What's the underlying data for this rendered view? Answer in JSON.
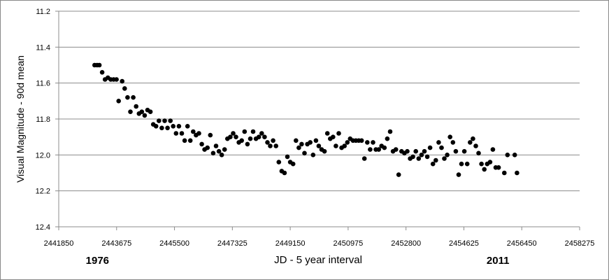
{
  "chart_data": {
    "type": "scatter",
    "title": "",
    "xlabel": "JD - 5 year interval",
    "ylabel": "Visual Magnitude - 90d mean",
    "xlim": [
      2441850,
      2458275
    ],
    "ylim": [
      11.2,
      12.4
    ],
    "y_inverted": true,
    "grid": "horizontal",
    "marker_color": "#000000",
    "xticks": [
      2441850,
      2443675,
      2445500,
      2447325,
      2449150,
      2450975,
      2452800,
      2454625,
      2456450,
      2458275
    ],
    "yticks": [
      11.2,
      11.4,
      11.6,
      11.8,
      12.0,
      12.2,
      12.4
    ],
    "xtick_labels": [
      "2441850",
      "2443675",
      "2445500",
      "2447325",
      "2449150",
      "2450975",
      "2452800",
      "2454625",
      "2456450",
      "2458275"
    ],
    "ytick_labels": [
      "11.2",
      "11.4",
      "11.6",
      "11.8",
      "12.0",
      "12.2",
      "12.4"
    ],
    "annotations": [
      {
        "text": "1976",
        "x": 2443070
      },
      {
        "text": "2011",
        "x": 2455700
      }
    ],
    "series": [
      {
        "points": [
          [
            2442980,
            11.5
          ],
          [
            2443060,
            11.5
          ],
          [
            2443130,
            11.5
          ],
          [
            2443220,
            11.54
          ],
          [
            2443310,
            11.58
          ],
          [
            2443400,
            11.57
          ],
          [
            2443490,
            11.58
          ],
          [
            2443580,
            11.58
          ],
          [
            2443670,
            11.58
          ],
          [
            2443740,
            11.7
          ],
          [
            2443850,
            11.59
          ],
          [
            2443930,
            11.63
          ],
          [
            2444020,
            11.68
          ],
          [
            2444110,
            11.76
          ],
          [
            2444200,
            11.68
          ],
          [
            2444290,
            11.73
          ],
          [
            2444380,
            11.77
          ],
          [
            2444470,
            11.76
          ],
          [
            2444560,
            11.78
          ],
          [
            2444650,
            11.75
          ],
          [
            2444740,
            11.76
          ],
          [
            2444830,
            11.83
          ],
          [
            2444920,
            11.84
          ],
          [
            2445010,
            11.81
          ],
          [
            2445100,
            11.85
          ],
          [
            2445190,
            11.81
          ],
          [
            2445280,
            11.85
          ],
          [
            2445370,
            11.81
          ],
          [
            2445460,
            11.84
          ],
          [
            2445550,
            11.88
          ],
          [
            2445640,
            11.84
          ],
          [
            2445730,
            11.88
          ],
          [
            2445820,
            11.92
          ],
          [
            2445910,
            11.84
          ],
          [
            2446000,
            11.92
          ],
          [
            2446090,
            11.87
          ],
          [
            2446180,
            11.89
          ],
          [
            2446270,
            11.88
          ],
          [
            2446360,
            11.94
          ],
          [
            2446450,
            11.97
          ],
          [
            2446540,
            11.96
          ],
          [
            2446630,
            11.89
          ],
          [
            2446720,
            11.99
          ],
          [
            2446810,
            11.95
          ],
          [
            2446900,
            11.98
          ],
          [
            2446990,
            12.0
          ],
          [
            2447080,
            11.97
          ],
          [
            2447170,
            11.91
          ],
          [
            2447260,
            11.9
          ],
          [
            2447350,
            11.88
          ],
          [
            2447440,
            11.9
          ],
          [
            2447530,
            11.93
          ],
          [
            2447620,
            11.92
          ],
          [
            2447710,
            11.87
          ],
          [
            2447800,
            11.94
          ],
          [
            2447890,
            11.91
          ],
          [
            2447980,
            11.87
          ],
          [
            2448070,
            11.91
          ],
          [
            2448160,
            11.9
          ],
          [
            2448250,
            11.88
          ],
          [
            2448340,
            11.9
          ],
          [
            2448430,
            11.93
          ],
          [
            2448520,
            11.95
          ],
          [
            2448610,
            11.92
          ],
          [
            2448700,
            11.95
          ],
          [
            2448790,
            12.04
          ],
          [
            2448880,
            12.09
          ],
          [
            2448970,
            12.1
          ],
          [
            2449060,
            12.01
          ],
          [
            2449150,
            12.04
          ],
          [
            2449240,
            12.05
          ],
          [
            2449330,
            11.92
          ],
          [
            2449420,
            11.96
          ],
          [
            2449510,
            11.94
          ],
          [
            2449600,
            11.99
          ],
          [
            2449690,
            11.94
          ],
          [
            2449780,
            11.93
          ],
          [
            2449870,
            12.0
          ],
          [
            2449960,
            11.92
          ],
          [
            2450050,
            11.95
          ],
          [
            2450140,
            11.97
          ],
          [
            2450230,
            11.98
          ],
          [
            2450320,
            11.88
          ],
          [
            2450410,
            11.91
          ],
          [
            2450500,
            11.9
          ],
          [
            2450590,
            11.95
          ],
          [
            2450680,
            11.88
          ],
          [
            2450770,
            11.96
          ],
          [
            2450860,
            11.95
          ],
          [
            2450950,
            11.93
          ],
          [
            2451040,
            11.91
          ],
          [
            2451130,
            11.92
          ],
          [
            2451220,
            11.92
          ],
          [
            2451310,
            11.92
          ],
          [
            2451400,
            11.92
          ],
          [
            2451490,
            12.02
          ],
          [
            2451580,
            11.93
          ],
          [
            2451670,
            11.97
          ],
          [
            2451760,
            11.93
          ],
          [
            2451850,
            11.97
          ],
          [
            2451940,
            11.97
          ],
          [
            2452030,
            11.95
          ],
          [
            2452120,
            11.96
          ],
          [
            2452210,
            11.91
          ],
          [
            2452300,
            11.87
          ],
          [
            2452390,
            11.98
          ],
          [
            2452480,
            11.97
          ],
          [
            2452570,
            12.11
          ],
          [
            2452660,
            11.98
          ],
          [
            2452750,
            11.99
          ],
          [
            2452840,
            11.98
          ],
          [
            2452930,
            12.02
          ],
          [
            2453020,
            12.01
          ],
          [
            2453110,
            11.98
          ],
          [
            2453200,
            12.02
          ],
          [
            2453290,
            12.0
          ],
          [
            2453380,
            11.98
          ],
          [
            2453470,
            12.01
          ],
          [
            2453560,
            11.96
          ],
          [
            2453650,
            12.05
          ],
          [
            2453740,
            12.03
          ],
          [
            2453830,
            11.93
          ],
          [
            2453920,
            11.96
          ],
          [
            2454010,
            12.02
          ],
          [
            2454100,
            12.0
          ],
          [
            2454190,
            11.9
          ],
          [
            2454280,
            11.93
          ],
          [
            2454370,
            11.98
          ],
          [
            2454460,
            12.11
          ],
          [
            2454550,
            12.05
          ],
          [
            2454640,
            11.98
          ],
          [
            2454730,
            12.05
          ],
          [
            2454820,
            11.93
          ],
          [
            2454910,
            11.91
          ],
          [
            2455000,
            11.95
          ],
          [
            2455090,
            11.99
          ],
          [
            2455180,
            12.05
          ],
          [
            2455270,
            12.08
          ],
          [
            2455360,
            12.05
          ],
          [
            2455450,
            12.04
          ],
          [
            2455540,
            11.97
          ],
          [
            2455630,
            12.07
          ],
          [
            2455720,
            12.07
          ],
          [
            2455900,
            12.1
          ],
          [
            2456000,
            12.0
          ],
          [
            2456230,
            12.0
          ],
          [
            2456300,
            12.1
          ]
        ]
      }
    ]
  }
}
